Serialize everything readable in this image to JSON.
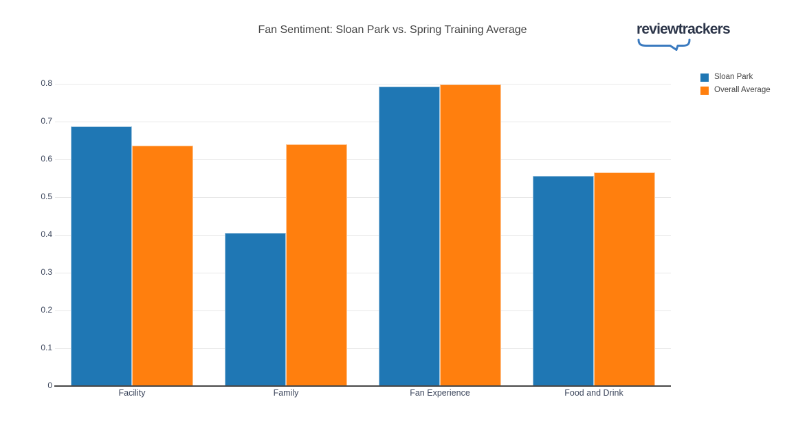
{
  "header": {
    "logo_text": "reviewtrackers"
  },
  "chart_data": {
    "type": "bar",
    "title": "Fan Sentiment: Sloan Park vs. Spring Training Average",
    "categories": [
      "Facility",
      "Family",
      "Fan Experience",
      "Food and Drink"
    ],
    "series": [
      {
        "name": "Sloan Park",
        "color": "#1f77b4",
        "values": [
          0.687,
          0.406,
          0.793,
          0.556
        ]
      },
      {
        "name": "Overall Average",
        "color": "#ff7f0e",
        "values": [
          0.637,
          0.64,
          0.798,
          0.565
        ]
      }
    ],
    "xlabel": "",
    "ylabel": "",
    "ylim": [
      0,
      0.8
    ],
    "ytick_step": 0.1,
    "ytick_labels": [
      "0",
      "0.1",
      "0.2",
      "0.3",
      "0.4",
      "0.5",
      "0.6",
      "0.7",
      "0.8"
    ],
    "grid": true,
    "legend_position": "top-right"
  },
  "colors": {
    "title_text": "#444444",
    "tick_label": "#3c465c",
    "legend_text": "#444444",
    "grid": "#e8e8e8",
    "axis_line": "#474747",
    "logo_text": "#2b3448",
    "logo_brace": "#3a7abf"
  }
}
